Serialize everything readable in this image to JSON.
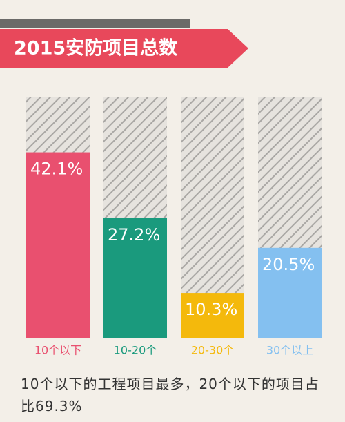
{
  "chart_data": {
    "type": "bar",
    "title": "2015安防项目总数",
    "categories": [
      "10个以下",
      "10-20个",
      "20-30个",
      "30个以上"
    ],
    "values": [
      42.1,
      27.2,
      10.3,
      20.5
    ],
    "value_labels": [
      "42.1%",
      "27.2%",
      "10.3%",
      "20.5%"
    ],
    "colors": [
      "#e9506f",
      "#1a9a7d",
      "#f4b90c",
      "#84c0f0"
    ],
    "note": "10个以下的工程项目最多，20个以下的项目占比69.3%"
  }
}
